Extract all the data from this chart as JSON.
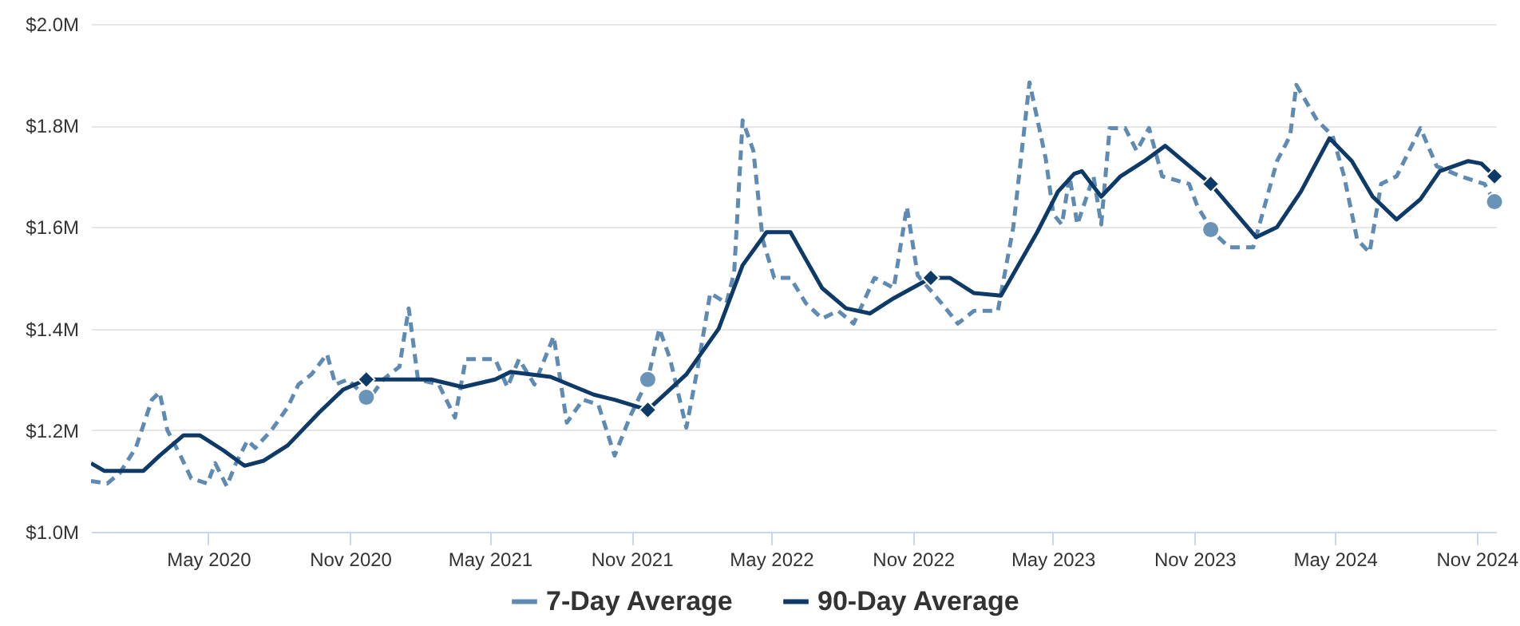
{
  "chart_data": {
    "type": "line",
    "xlim": [
      "2019-12-01",
      "2024-11-26"
    ],
    "xticks": [
      {
        "value": "2020-05-01",
        "label": "May 2020"
      },
      {
        "value": "2020-11-01",
        "label": "Nov 2020"
      },
      {
        "value": "2021-05-01",
        "label": "May 2021"
      },
      {
        "value": "2021-11-01",
        "label": "Nov 2021"
      },
      {
        "value": "2022-05-01",
        "label": "May 2022"
      },
      {
        "value": "2022-11-01",
        "label": "Nov 2022"
      },
      {
        "value": "2023-05-01",
        "label": "May 2023"
      },
      {
        "value": "2023-11-01",
        "label": "Nov 2023"
      },
      {
        "value": "2024-05-01",
        "label": "May 2024"
      },
      {
        "value": "2024-11-01",
        "label": "Nov 2024"
      }
    ],
    "ylim": [
      1.0,
      2.0
    ],
    "yticks": [
      {
        "value": 1.0,
        "label": "$1.0M"
      },
      {
        "value": 1.2,
        "label": "$1.2M"
      },
      {
        "value": 1.4,
        "label": "$1.4M"
      },
      {
        "value": 1.6,
        "label": "$1.6M"
      },
      {
        "value": 1.8,
        "label": "$1.8M"
      },
      {
        "value": 2.0,
        "label": "$2.0M"
      }
    ],
    "grid": "y",
    "legend": "bottom",
    "series": [
      {
        "name": "7-Day Average",
        "color": "#5f8bb2",
        "line_style": "dashed",
        "x": [
          "2019-12-01",
          "2019-12-22",
          "2020-01-07",
          "2020-01-28",
          "2020-02-18",
          "2020-02-28",
          "2020-03-09",
          "2020-03-26",
          "2020-04-09",
          "2020-04-30",
          "2020-05-10",
          "2020-05-25",
          "2020-06-06",
          "2020-06-21",
          "2020-07-01",
          "2020-07-22",
          "2020-08-12",
          "2020-08-26",
          "2020-09-12",
          "2020-10-02",
          "2020-10-13",
          "2020-10-29",
          "2020-11-25",
          "2020-12-14",
          "2021-01-04",
          "2021-01-16",
          "2021-01-28",
          "2021-02-24",
          "2021-03-17",
          "2021-03-31",
          "2021-04-17",
          "2021-05-08",
          "2021-05-24",
          "2021-06-08",
          "2021-06-28",
          "2021-07-23",
          "2021-08-09",
          "2021-08-30",
          "2021-09-19",
          "2021-10-10",
          "2021-10-31",
          "2021-11-22",
          "2021-12-07",
          "2021-12-21",
          "2022-01-11",
          "2022-01-26",
          "2022-02-11",
          "2022-03-04",
          "2022-03-14",
          "2022-03-25",
          "2022-04-08",
          "2022-04-20",
          "2022-05-05",
          "2022-05-26",
          "2022-06-15",
          "2022-07-06",
          "2022-07-27",
          "2022-08-16",
          "2022-09-12",
          "2022-10-07",
          "2022-10-24",
          "2022-11-07",
          "2022-12-08",
          "2022-12-29",
          "2023-01-19",
          "2023-02-19",
          "2023-03-11",
          "2023-04-01",
          "2023-04-22",
          "2023-05-02",
          "2023-05-13",
          "2023-05-23",
          "2023-06-02",
          "2023-06-23",
          "2023-07-03",
          "2023-07-14",
          "2023-08-03",
          "2023-08-18",
          "2023-09-03",
          "2023-09-20",
          "2023-10-25",
          "2023-11-05",
          "2023-11-25",
          "2023-12-16",
          "2024-01-16",
          "2024-02-16",
          "2024-03-04",
          "2024-03-12",
          "2024-04-08",
          "2024-04-28",
          "2024-05-13",
          "2024-05-30",
          "2024-06-15",
          "2024-06-30",
          "2024-07-20",
          "2024-08-20",
          "2024-09-10",
          "2024-10-11",
          "2024-11-11",
          "2024-11-24"
        ],
        "values": [
          1.1,
          1.095,
          1.115,
          1.165,
          1.26,
          1.275,
          1.2,
          1.15,
          1.105,
          1.095,
          1.135,
          1.09,
          1.135,
          1.18,
          1.165,
          1.2,
          1.245,
          1.29,
          1.31,
          1.35,
          1.29,
          1.3,
          1.26,
          1.3,
          1.325,
          1.44,
          1.3,
          1.29,
          1.225,
          1.34,
          1.34,
          1.34,
          1.285,
          1.34,
          1.29,
          1.385,
          1.215,
          1.26,
          1.25,
          1.15,
          1.23,
          1.3,
          1.4,
          1.34,
          1.205,
          1.325,
          1.47,
          1.45,
          1.51,
          1.81,
          1.75,
          1.575,
          1.5,
          1.5,
          1.45,
          1.42,
          1.435,
          1.41,
          1.5,
          1.48,
          1.64,
          1.505,
          1.45,
          1.41,
          1.435,
          1.435,
          1.6,
          1.885,
          1.735,
          1.625,
          1.605,
          1.7,
          1.605,
          1.7,
          1.605,
          1.795,
          1.795,
          1.75,
          1.795,
          1.7,
          1.685,
          1.64,
          1.59,
          1.56,
          1.56,
          1.73,
          1.78,
          1.88,
          1.81,
          1.78,
          1.7,
          1.575,
          1.55,
          1.685,
          1.7,
          1.795,
          1.72,
          1.7,
          1.685,
          1.65
        ]
      },
      {
        "name": "90-Day Average",
        "color": "#0e3a68",
        "line_style": "solid",
        "x": [
          "2019-12-01",
          "2019-12-18",
          "2020-02-07",
          "2020-02-28",
          "2020-03-30",
          "2020-04-20",
          "2020-05-21",
          "2020-06-17",
          "2020-07-12",
          "2020-08-12",
          "2020-09-22",
          "2020-10-23",
          "2020-11-22",
          "2020-12-24",
          "2021-02-14",
          "2021-03-27",
          "2021-05-08",
          "2021-05-28",
          "2021-07-19",
          "2021-09-13",
          "2021-10-10",
          "2021-11-22",
          "2022-01-11",
          "2022-02-22",
          "2022-03-25",
          "2022-04-25",
          "2022-05-26",
          "2022-07-06",
          "2022-08-06",
          "2022-09-06",
          "2022-10-07",
          "2022-11-24",
          "2022-12-19",
          "2023-01-19",
          "2023-02-23",
          "2023-04-11",
          "2023-05-08",
          "2023-05-29",
          "2023-06-08",
          "2023-07-03",
          "2023-07-28",
          "2023-08-28",
          "2023-09-24",
          "2023-11-22",
          "2024-01-20",
          "2024-02-16",
          "2024-03-18",
          "2024-04-24",
          "2024-05-23",
          "2024-06-19",
          "2024-07-20",
          "2024-08-20",
          "2024-09-14",
          "2024-10-21",
          "2024-11-07",
          "2024-11-24"
        ],
        "values": [
          1.135,
          1.12,
          1.12,
          1.15,
          1.19,
          1.19,
          1.16,
          1.13,
          1.14,
          1.17,
          1.235,
          1.28,
          1.3,
          1.3,
          1.3,
          1.285,
          1.3,
          1.315,
          1.305,
          1.27,
          1.26,
          1.24,
          1.31,
          1.4,
          1.525,
          1.59,
          1.59,
          1.48,
          1.44,
          1.43,
          1.46,
          1.5,
          1.5,
          1.47,
          1.465,
          1.59,
          1.67,
          1.705,
          1.71,
          1.66,
          1.7,
          1.73,
          1.76,
          1.685,
          1.58,
          1.6,
          1.67,
          1.775,
          1.73,
          1.66,
          1.615,
          1.655,
          1.71,
          1.73,
          1.725,
          1.7
        ]
      },
      {
        "type": "scatter",
        "marker": "circle",
        "color": "#6a93b8",
        "x": [
          "2020-11-22",
          "2021-11-22",
          "2023-11-22",
          "2024-11-24"
        ],
        "values": [
          1.265,
          1.3,
          1.595,
          1.65
        ]
      },
      {
        "type": "scatter",
        "marker": "diamond",
        "color": "#0e3a68",
        "x": [
          "2020-11-22",
          "2021-11-22",
          "2022-11-24",
          "2023-11-22",
          "2024-11-24"
        ],
        "values": [
          1.3,
          1.24,
          1.5,
          1.685,
          1.7
        ]
      }
    ]
  }
}
